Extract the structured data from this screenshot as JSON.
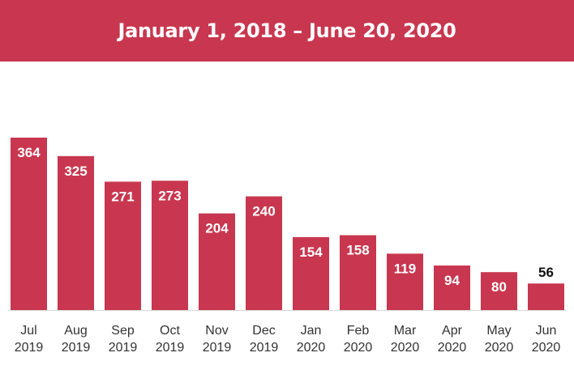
{
  "banner": {
    "title": "January 1, 2018 – June 20, 2020",
    "color": "#c8374f"
  },
  "chart_data": {
    "type": "bar",
    "title": "January 1, 2018 – June 20, 2020",
    "xlabel": "",
    "ylabel": "",
    "ylim": [
      0,
      364
    ],
    "grid": false,
    "legend": "none",
    "bar_color": "#c8374f",
    "categories": [
      [
        "Jul",
        "2019"
      ],
      [
        "Aug",
        "2019"
      ],
      [
        "Sep",
        "2019"
      ],
      [
        "Oct",
        "2019"
      ],
      [
        "Nov",
        "2019"
      ],
      [
        "Dec",
        "2019"
      ],
      [
        "Jan",
        "2020"
      ],
      [
        "Feb",
        "2020"
      ],
      [
        "Mar",
        "2020"
      ],
      [
        "Apr",
        "2020"
      ],
      [
        "May",
        "2020"
      ],
      [
        "Jun",
        "2020"
      ]
    ],
    "values": [
      364,
      325,
      271,
      273,
      204,
      240,
      154,
      158,
      119,
      94,
      80,
      56
    ]
  }
}
